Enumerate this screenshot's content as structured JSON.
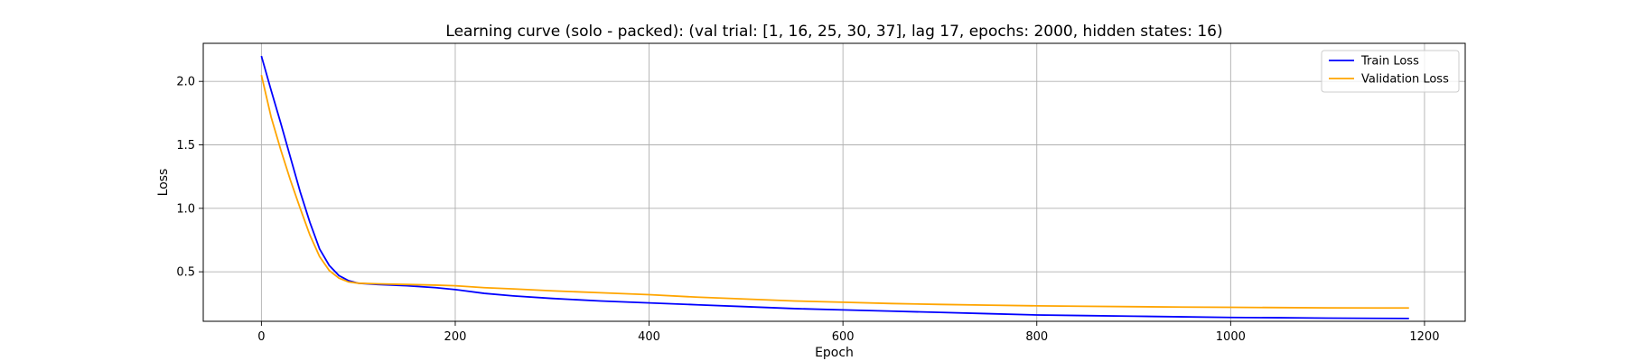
{
  "chart_data": {
    "type": "line",
    "title": "Learning curve (solo - packed): (val trial: [1, 16, 25, 30, 37], lag 17, epochs: 2000, hidden states: 16)",
    "xlabel": "Epoch",
    "ylabel": "Loss",
    "xlim": [
      -60,
      1242
    ],
    "ylim": [
      0.11,
      2.3
    ],
    "xticks": [
      0,
      200,
      400,
      600,
      800,
      1000,
      1200
    ],
    "xtick_labels": [
      "0",
      "200",
      "400",
      "600",
      "800",
      "1000",
      "1200"
    ],
    "yticks": [
      0.5,
      1.0,
      1.5,
      2.0
    ],
    "ytick_labels": [
      "0.5",
      "1.0",
      "1.5",
      "2.0"
    ],
    "grid": true,
    "legend_position": "top-right",
    "series": [
      {
        "name": "Train Loss",
        "color": "#0000ff",
        "x": [
          0,
          10,
          20,
          30,
          40,
          50,
          60,
          70,
          80,
          90,
          100,
          120,
          150,
          180,
          200,
          230,
          260,
          300,
          350,
          400,
          450,
          500,
          550,
          600,
          650,
          700,
          750,
          800,
          850,
          900,
          950,
          1000,
          1050,
          1100,
          1150,
          1184
        ],
        "y": [
          2.2,
          1.93,
          1.67,
          1.4,
          1.13,
          0.89,
          0.68,
          0.55,
          0.47,
          0.43,
          0.41,
          0.4,
          0.39,
          0.375,
          0.36,
          0.33,
          0.31,
          0.29,
          0.27,
          0.255,
          0.24,
          0.225,
          0.21,
          0.2,
          0.19,
          0.18,
          0.17,
          0.16,
          0.155,
          0.15,
          0.145,
          0.14,
          0.138,
          0.135,
          0.133,
          0.132
        ]
      },
      {
        "name": "Validation Loss",
        "color": "#ffa500",
        "x": [
          0,
          10,
          20,
          30,
          40,
          50,
          60,
          70,
          80,
          90,
          100,
          120,
          150,
          180,
          200,
          230,
          260,
          300,
          350,
          400,
          450,
          500,
          550,
          600,
          650,
          700,
          750,
          800,
          850,
          900,
          950,
          1000,
          1050,
          1100,
          1150,
          1184
        ],
        "y": [
          2.05,
          1.72,
          1.46,
          1.22,
          1.0,
          0.79,
          0.62,
          0.51,
          0.45,
          0.42,
          0.41,
          0.405,
          0.4,
          0.395,
          0.39,
          0.375,
          0.365,
          0.35,
          0.335,
          0.32,
          0.3,
          0.285,
          0.27,
          0.26,
          0.25,
          0.243,
          0.237,
          0.232,
          0.228,
          0.225,
          0.222,
          0.22,
          0.218,
          0.216,
          0.215,
          0.215
        ]
      }
    ]
  }
}
